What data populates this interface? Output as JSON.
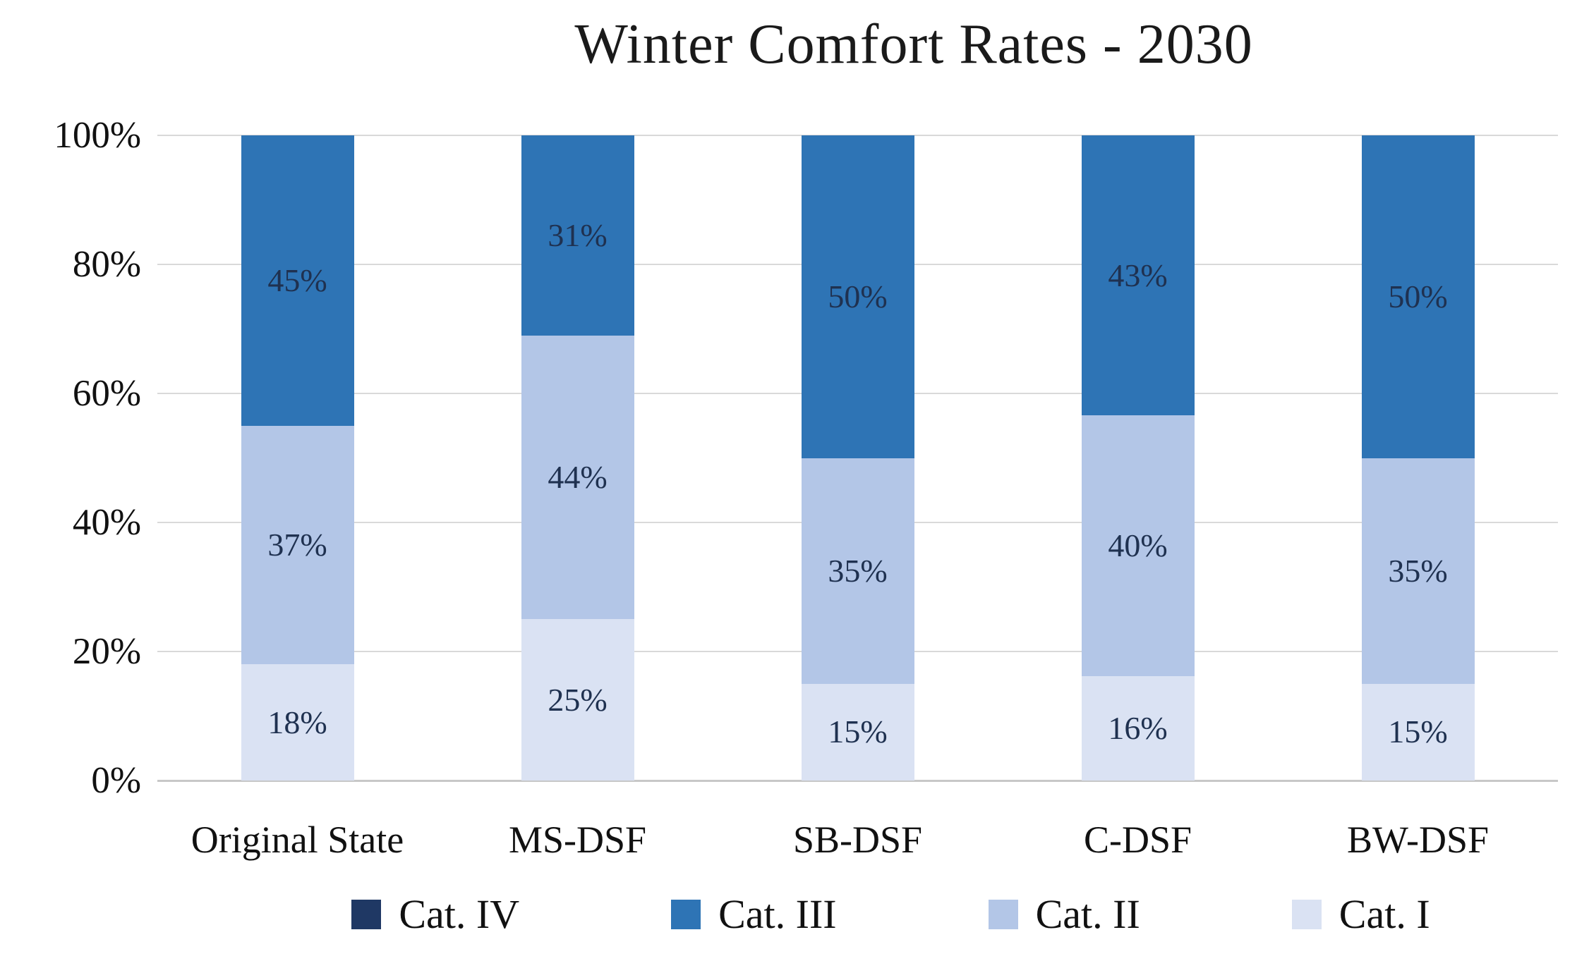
{
  "title": "Winter Comfort Rates - 2030",
  "chart_data": {
    "type": "bar",
    "subtype": "stacked-percent-column",
    "title": "Winter Comfort Rates - 2030",
    "categories": [
      "Original State",
      "MS-DSF",
      "SB-DSF",
      "C-DSF",
      "BW-DSF"
    ],
    "series": [
      {
        "name": "Cat. IV",
        "color": "#1F3864",
        "values": [
          0,
          0,
          0,
          0,
          0
        ]
      },
      {
        "name": "Cat. III",
        "color": "#2E74B5",
        "values": [
          45,
          31,
          50,
          43,
          50
        ]
      },
      {
        "name": "Cat. II",
        "color": "#B3C6E7",
        "values": [
          37,
          44,
          35,
          40,
          35
        ]
      },
      {
        "name": "Cat. I",
        "color": "#DAE2F3",
        "values": [
          18,
          25,
          15,
          16,
          15
        ]
      }
    ],
    "data_label_suffix": "%",
    "data_label_color": "#1F3150",
    "xlabel": "",
    "ylabel": "",
    "ylim": [
      0,
      100
    ],
    "yticks": [
      "0%",
      "20%",
      "40%",
      "60%",
      "80%",
      "100%"
    ],
    "grid": true,
    "gridline_color": "#D9D9D9",
    "legend_position": "bottom",
    "legend": [
      "Cat. IV",
      "Cat. III",
      "Cat. II",
      "Cat. I"
    ]
  }
}
